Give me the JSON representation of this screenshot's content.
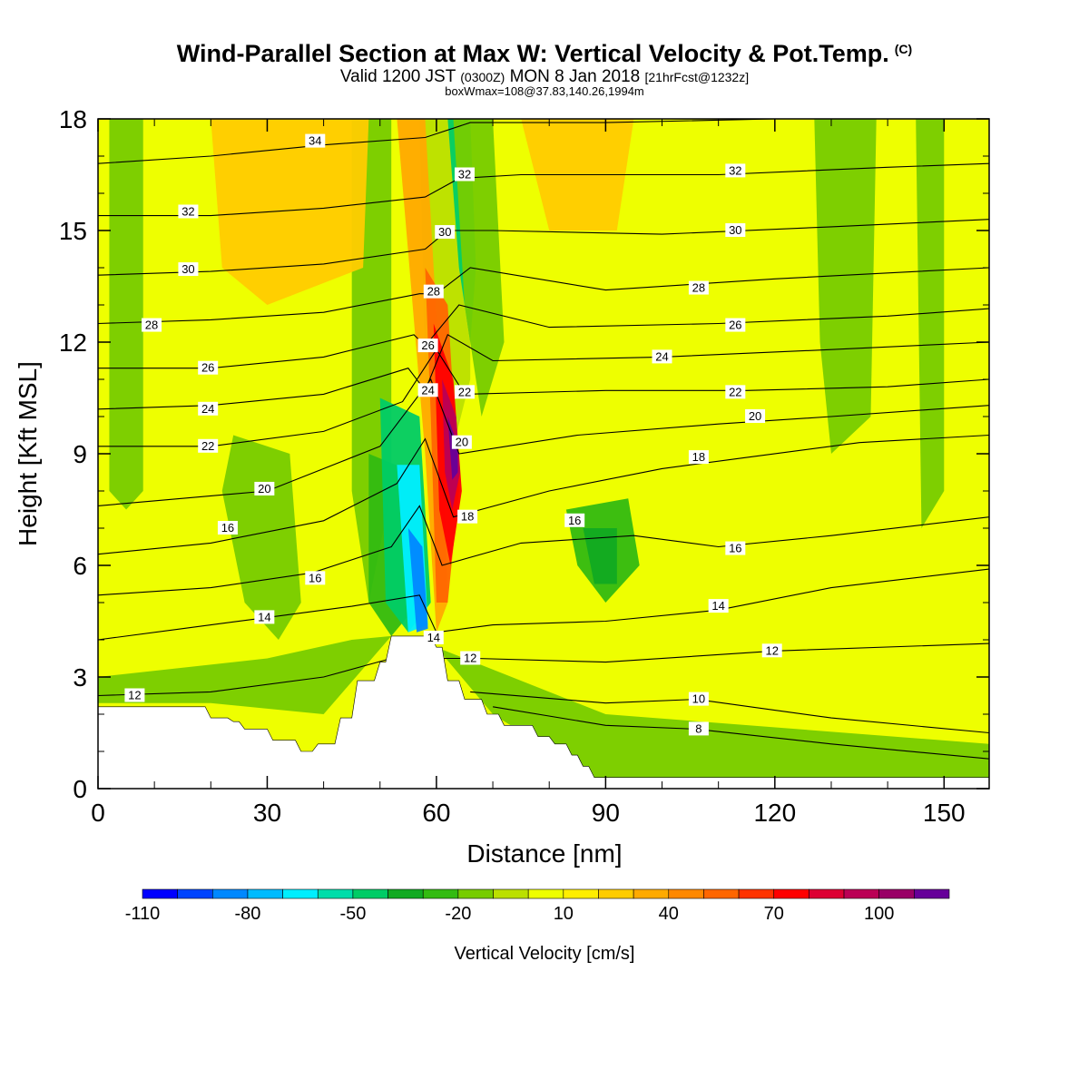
{
  "header": {
    "title": "Wind-Parallel Section at Max W: Vertical Velocity & Pot.Temp.",
    "copyright_mark": "(C)",
    "valid_main": "Valid 1200 JST",
    "valid_z": "(0300Z)",
    "valid_date": "MON 8 Jan 2018",
    "forecast": "[21hrFcst@1232z]",
    "subtitle2": "boxWmax=108@37.83,140.26,1994m"
  },
  "chart_data": {
    "type": "heatmap",
    "xlabel": "Distance [nm]",
    "ylabel": "Height [Kft MSL]",
    "xlim": [
      0,
      158
    ],
    "ylim": [
      0,
      18
    ],
    "x_ticks": [
      0,
      30,
      60,
      90,
      120,
      150
    ],
    "x_tick_labels": [
      "0",
      "30",
      "60",
      "90",
      "120",
      "150"
    ],
    "y_ticks": [
      0,
      3,
      6,
      9,
      12,
      15,
      18
    ],
    "y_tick_labels": [
      "0",
      "3",
      "6",
      "9",
      "12",
      "15",
      "18"
    ],
    "grid": false,
    "colorbar": {
      "label": "Vertical Velocity [cm/s]",
      "levels": [
        -110,
        -100,
        -90,
        -80,
        -70,
        -60,
        -50,
        -40,
        -30,
        -20,
        -10,
        0,
        10,
        20,
        30,
        40,
        50,
        60,
        70,
        80,
        90,
        100,
        110,
        120
      ],
      "tick_values": [
        -110,
        -80,
        -50,
        -20,
        10,
        40,
        70,
        100
      ],
      "tick_labels": [
        "-110",
        "-80",
        "-50",
        "-20",
        "10",
        "40",
        "70",
        "100"
      ],
      "colors": [
        "#0000ff",
        "#0044ff",
        "#0088ff",
        "#00bbff",
        "#00eeff",
        "#00ddaa",
        "#00cc66",
        "#11aa22",
        "#33bb11",
        "#77cc00",
        "#bbe000",
        "#eeff00",
        "#ffee00",
        "#ffcc00",
        "#ffaa00",
        "#ff8800",
        "#ff6600",
        "#ff3300",
        "#ff0000",
        "#dd0033",
        "#bb0055",
        "#990066",
        "#660099"
      ]
    },
    "terrain_kft": [
      [
        0,
        2.2
      ],
      [
        19,
        2.2
      ],
      [
        20,
        1.9
      ],
      [
        23,
        1.9
      ],
      [
        24,
        1.8
      ],
      [
        25,
        1.8
      ],
      [
        26,
        1.6
      ],
      [
        30,
        1.6
      ],
      [
        31,
        1.3
      ],
      [
        35,
        1.3
      ],
      [
        36,
        1.0
      ],
      [
        38,
        1.0
      ],
      [
        39,
        1.2
      ],
      [
        42,
        1.2
      ],
      [
        43,
        1.9
      ],
      [
        45,
        1.9
      ],
      [
        46,
        2.9
      ],
      [
        49,
        2.9
      ],
      [
        50,
        3.4
      ],
      [
        51,
        3.4
      ],
      [
        52,
        4.1
      ],
      [
        59,
        4.1
      ],
      [
        60,
        3.8
      ],
      [
        61,
        3.8
      ],
      [
        62,
        2.9
      ],
      [
        64,
        2.9
      ],
      [
        65,
        2.4
      ],
      [
        68,
        2.4
      ],
      [
        69,
        2.0
      ],
      [
        71,
        2.0
      ],
      [
        72,
        1.7
      ],
      [
        77,
        1.7
      ],
      [
        78,
        1.4
      ],
      [
        80,
        1.4
      ],
      [
        81,
        1.2
      ],
      [
        83,
        1.2
      ],
      [
        84,
        0.9
      ],
      [
        85,
        0.9
      ],
      [
        86,
        0.6
      ],
      [
        87,
        0.6
      ],
      [
        88,
        0.3
      ],
      [
        158,
        0.3
      ]
    ],
    "theta_contours": [
      {
        "label": "8",
        "points": [
          [
            70,
            2.2
          ],
          [
            90,
            1.7
          ],
          [
            106,
            1.6
          ],
          [
            130,
            1.2
          ],
          [
            158,
            0.8
          ]
        ]
      },
      {
        "label": "10",
        "points": [
          [
            66,
            2.6
          ],
          [
            90,
            2.3
          ],
          [
            106,
            2.4
          ],
          [
            130,
            1.9
          ],
          [
            158,
            1.5
          ]
        ]
      },
      {
        "label": "12",
        "points": [
          [
            0,
            2.5
          ],
          [
            20,
            2.6
          ],
          [
            40,
            3.0
          ],
          [
            52,
            3.5
          ],
          [
            67,
            3.5
          ],
          [
            90,
            3.4
          ],
          [
            120,
            3.7
          ],
          [
            158,
            3.9
          ]
        ]
      },
      {
        "label": "14",
        "points": [
          [
            0,
            4.0
          ],
          [
            15,
            4.3
          ],
          [
            30,
            4.6
          ],
          [
            45,
            4.9
          ],
          [
            57,
            5.2
          ],
          [
            60,
            4.2
          ],
          [
            70,
            4.4
          ],
          [
            90,
            4.5
          ],
          [
            110,
            4.8
          ],
          [
            130,
            5.4
          ],
          [
            158,
            5.9
          ]
        ]
      },
      {
        "label": "16",
        "points": [
          [
            0,
            5.2
          ],
          [
            20,
            5.4
          ],
          [
            38,
            5.8
          ],
          [
            52,
            6.5
          ],
          [
            57,
            7.6
          ],
          [
            61,
            6.0
          ],
          [
            75,
            6.6
          ],
          [
            95,
            6.8
          ],
          [
            110,
            6.5
          ],
          [
            130,
            6.8
          ],
          [
            158,
            7.3
          ]
        ]
      },
      {
        "label": "18",
        "points": [
          [
            0,
            6.3
          ],
          [
            20,
            6.6
          ],
          [
            40,
            7.2
          ],
          [
            53,
            8.2
          ],
          [
            58,
            9.4
          ],
          [
            63,
            7.3
          ],
          [
            80,
            8.0
          ],
          [
            100,
            8.6
          ],
          [
            115,
            8.9
          ],
          [
            135,
            9.3
          ],
          [
            158,
            9.5
          ]
        ]
      },
      {
        "label": "20",
        "points": [
          [
            0,
            7.6
          ],
          [
            15,
            7.8
          ],
          [
            30,
            8.0
          ],
          [
            50,
            9.2
          ],
          [
            59,
            11.0
          ],
          [
            64,
            9.0
          ],
          [
            85,
            9.5
          ],
          [
            110,
            9.8
          ],
          [
            130,
            10.0
          ],
          [
            158,
            10.3
          ]
        ]
      },
      {
        "label": "22",
        "points": [
          [
            0,
            9.2
          ],
          [
            20,
            9.2
          ],
          [
            40,
            9.6
          ],
          [
            54,
            10.4
          ],
          [
            60,
            11.8
          ],
          [
            65,
            10.6
          ],
          [
            90,
            10.7
          ],
          [
            115,
            10.7
          ],
          [
            140,
            10.8
          ],
          [
            158,
            11.0
          ]
        ]
      },
      {
        "label": "24",
        "points": [
          [
            0,
            10.2
          ],
          [
            20,
            10.3
          ],
          [
            40,
            10.6
          ],
          [
            55,
            11.3
          ],
          [
            58,
            10.7
          ],
          [
            62,
            12.2
          ],
          [
            70,
            11.5
          ],
          [
            100,
            11.6
          ],
          [
            130,
            11.8
          ],
          [
            158,
            12.0
          ]
        ]
      },
      {
        "label": "26",
        "points": [
          [
            0,
            11.3
          ],
          [
            20,
            11.3
          ],
          [
            40,
            11.6
          ],
          [
            56,
            12.2
          ],
          [
            58,
            11.9
          ],
          [
            64,
            13.0
          ],
          [
            80,
            12.4
          ],
          [
            110,
            12.5
          ],
          [
            140,
            12.7
          ],
          [
            158,
            12.9
          ]
        ]
      },
      {
        "label": "28",
        "points": [
          [
            0,
            12.5
          ],
          [
            20,
            12.6
          ],
          [
            40,
            12.8
          ],
          [
            57,
            13.3
          ],
          [
            60,
            13.3
          ],
          [
            66,
            14.0
          ],
          [
            90,
            13.4
          ],
          [
            120,
            13.7
          ],
          [
            158,
            14.0
          ]
        ]
      },
      {
        "label": "30",
        "points": [
          [
            0,
            13.8
          ],
          [
            20,
            13.9
          ],
          [
            40,
            14.1
          ],
          [
            58,
            14.5
          ],
          [
            62,
            15.0
          ],
          [
            70,
            15.0
          ],
          [
            100,
            14.9
          ],
          [
            130,
            15.1
          ],
          [
            158,
            15.3
          ]
        ]
      },
      {
        "label": "32",
        "points": [
          [
            0,
            15.4
          ],
          [
            20,
            15.4
          ],
          [
            40,
            15.6
          ],
          [
            58,
            15.9
          ],
          [
            64,
            16.4
          ],
          [
            75,
            16.5
          ],
          [
            110,
            16.5
          ],
          [
            140,
            16.7
          ],
          [
            158,
            16.8
          ]
        ]
      },
      {
        "label": "34",
        "points": [
          [
            0,
            16.8
          ],
          [
            20,
            17.0
          ],
          [
            40,
            17.3
          ],
          [
            58,
            17.5
          ],
          [
            66,
            17.9
          ],
          [
            90,
            17.9
          ],
          [
            120,
            18.0
          ]
        ]
      }
    ],
    "contour_labels": [
      {
        "text": "34",
        "x": 38.5,
        "y": 17.4
      },
      {
        "text": "32",
        "x": 16,
        "y": 15.5
      },
      {
        "text": "32",
        "x": 65,
        "y": 16.5
      },
      {
        "text": "32",
        "x": 113,
        "y": 16.6
      },
      {
        "text": "30",
        "x": 16,
        "y": 13.95
      },
      {
        "text": "30",
        "x": 61.5,
        "y": 14.95
      },
      {
        "text": "30",
        "x": 113,
        "y": 15.0
      },
      {
        "text": "28",
        "x": 9.5,
        "y": 12.45
      },
      {
        "text": "28",
        "x": 59.5,
        "y": 13.35
      },
      {
        "text": "28",
        "x": 106.5,
        "y": 13.45
      },
      {
        "text": "26",
        "x": 19.5,
        "y": 11.3
      },
      {
        "text": "26",
        "x": 58.5,
        "y": 11.9
      },
      {
        "text": "26",
        "x": 113,
        "y": 12.45
      },
      {
        "text": "24",
        "x": 19.5,
        "y": 10.2
      },
      {
        "text": "24",
        "x": 58.5,
        "y": 10.7
      },
      {
        "text": "24",
        "x": 100,
        "y": 11.6
      },
      {
        "text": "22",
        "x": 19.5,
        "y": 9.2
      },
      {
        "text": "22",
        "x": 65,
        "y": 10.65
      },
      {
        "text": "22",
        "x": 113,
        "y": 10.65
      },
      {
        "text": "20",
        "x": 29.5,
        "y": 8.05
      },
      {
        "text": "20",
        "x": 64.5,
        "y": 9.3
      },
      {
        "text": "20",
        "x": 116.5,
        "y": 10.0
      },
      {
        "text": "18",
        "x": 65.5,
        "y": 7.3
      },
      {
        "text": "18",
        "x": 106.5,
        "y": 8.9
      },
      {
        "text": "16",
        "x": 23,
        "y": 7.0
      },
      {
        "text": "16",
        "x": 38.5,
        "y": 5.65
      },
      {
        "text": "16",
        "x": 84.5,
        "y": 7.2
      },
      {
        "text": "16",
        "x": 113,
        "y": 6.45
      },
      {
        "text": "14",
        "x": 29.5,
        "y": 4.6
      },
      {
        "text": "14",
        "x": 59.5,
        "y": 4.05
      },
      {
        "text": "14",
        "x": 110,
        "y": 4.9
      },
      {
        "text": "12",
        "x": 6.5,
        "y": 2.5
      },
      {
        "text": "12",
        "x": 66,
        "y": 3.5
      },
      {
        "text": "12",
        "x": 119.5,
        "y": 3.7
      },
      {
        "text": "10",
        "x": 106.5,
        "y": 2.4
      },
      {
        "text": "8",
        "x": 106.5,
        "y": 1.6
      }
    ]
  }
}
